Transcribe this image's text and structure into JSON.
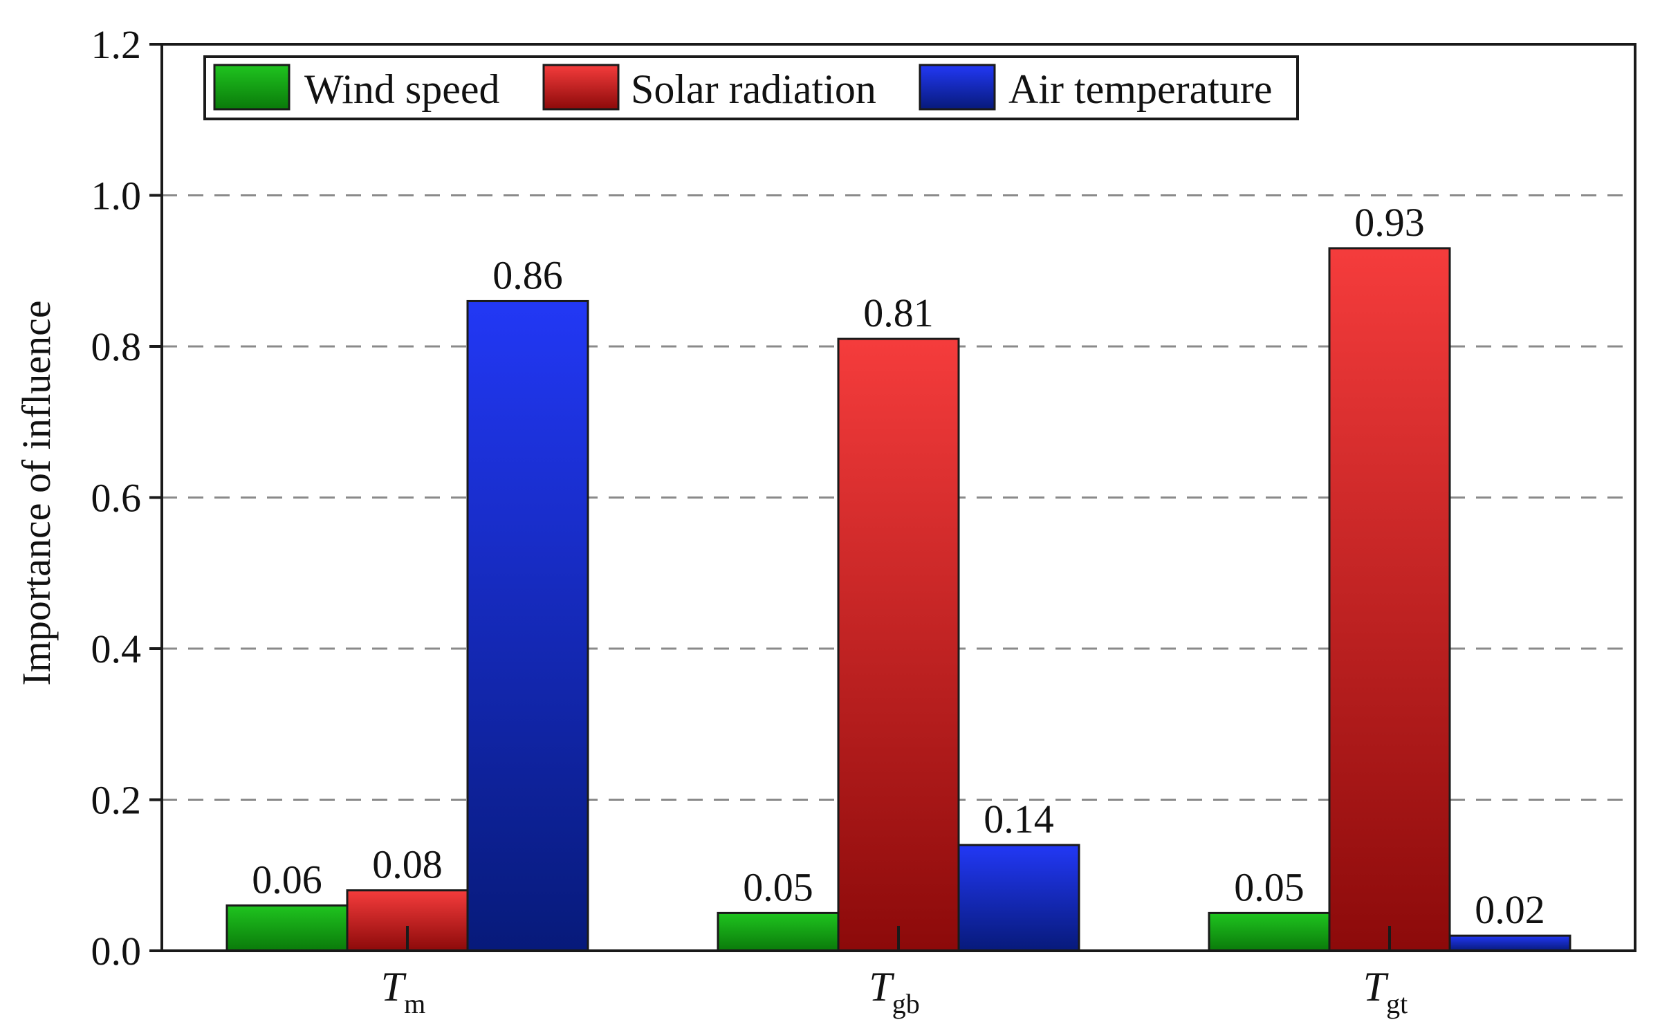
{
  "chart_data": {
    "type": "bar",
    "title": "",
    "xlabel": "",
    "ylabel": "Importance of influence",
    "ylim": [
      0,
      1.2
    ],
    "yticks": [
      "0.0",
      "0.2",
      "0.4",
      "0.6",
      "0.8",
      "1.0",
      "1.2"
    ],
    "grid": "horizontal dashed at 0.2, 0.4, 0.6, 0.8, 1.0",
    "legend_position": "top-left",
    "categories": [
      {
        "main": "T",
        "sub": "m"
      },
      {
        "main": "T",
        "sub": "gb"
      },
      {
        "main": "T",
        "sub": "gt"
      }
    ],
    "series": [
      {
        "name": "Wind speed",
        "color": "#1fc41f",
        "color_dark": "#0a7a0a",
        "values": [
          0.06,
          0.05,
          0.05
        ],
        "labels": [
          "0.06",
          "0.05",
          "0.05"
        ]
      },
      {
        "name": "Solar radiation",
        "color": "#f53c3c",
        "color_dark": "#8c0a0a",
        "values": [
          0.08,
          0.81,
          0.93
        ],
        "labels": [
          "0.08",
          "0.81",
          "0.93"
        ]
      },
      {
        "name": "Air temperature",
        "color": "#2238f5",
        "color_dark": "#071a7a",
        "values": [
          0.86,
          0.14,
          0.02
        ],
        "labels": [
          "0.86",
          "0.14",
          "0.02"
        ]
      }
    ]
  }
}
